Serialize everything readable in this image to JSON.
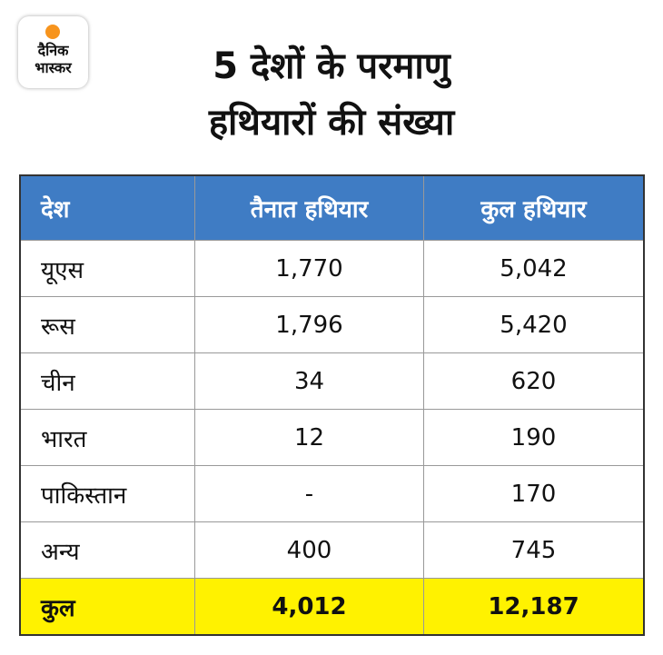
{
  "logo": {
    "lines": [
      "दैनिक",
      "भास्कर"
    ]
  },
  "header": {
    "title_lines": [
      "5 देशों के परमाणु",
      "हथियारों की संख्या"
    ]
  },
  "table": {
    "columns": [
      "देश",
      "तैनात हथियार",
      "कुल हथियार"
    ],
    "rows": [
      [
        "यूएस",
        "1,770",
        "5,042"
      ],
      [
        "रूस",
        "1,796",
        "5,420"
      ],
      [
        "चीन",
        "34",
        "620"
      ],
      [
        "भारत",
        "12",
        "190"
      ],
      [
        "पाकिस्तान",
        "-",
        "170"
      ],
      [
        "अन्य",
        "400",
        "745"
      ]
    ],
    "total": [
      "कुल",
      "4,012",
      "12,187"
    ]
  }
}
